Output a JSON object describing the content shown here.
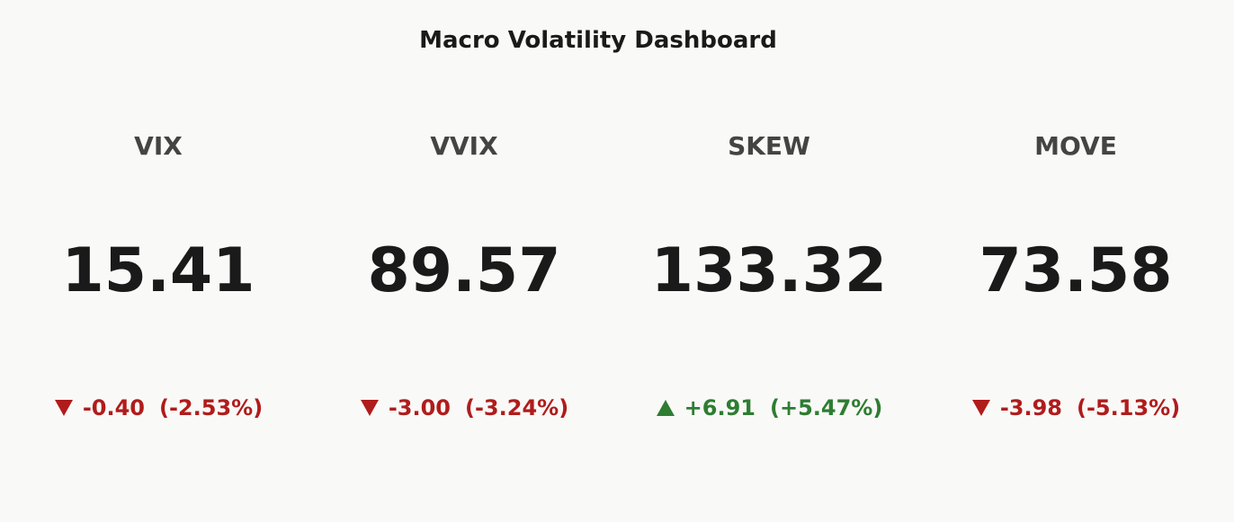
{
  "title": "Macro Volatility Dashboard",
  "indicators": [
    {
      "name": "VIX",
      "value": "15.41",
      "delta": "-0.40",
      "delta_percent": "(-2.53%)",
      "direction": "down"
    },
    {
      "name": "VVIX",
      "value": "89.57",
      "delta": "-3.00",
      "delta_percent": "(-3.24%)",
      "direction": "down"
    },
    {
      "name": "SKEW",
      "value": "133.32",
      "delta": "+6.91",
      "delta_percent": "(+5.47%)",
      "direction": "up"
    },
    {
      "name": "MOVE",
      "value": "73.58",
      "delta": "-3.98",
      "delta_percent": "(-5.13%)",
      "direction": "down"
    }
  ],
  "colors": {
    "up": "#2e7d32",
    "down": "#b01c1c"
  }
}
